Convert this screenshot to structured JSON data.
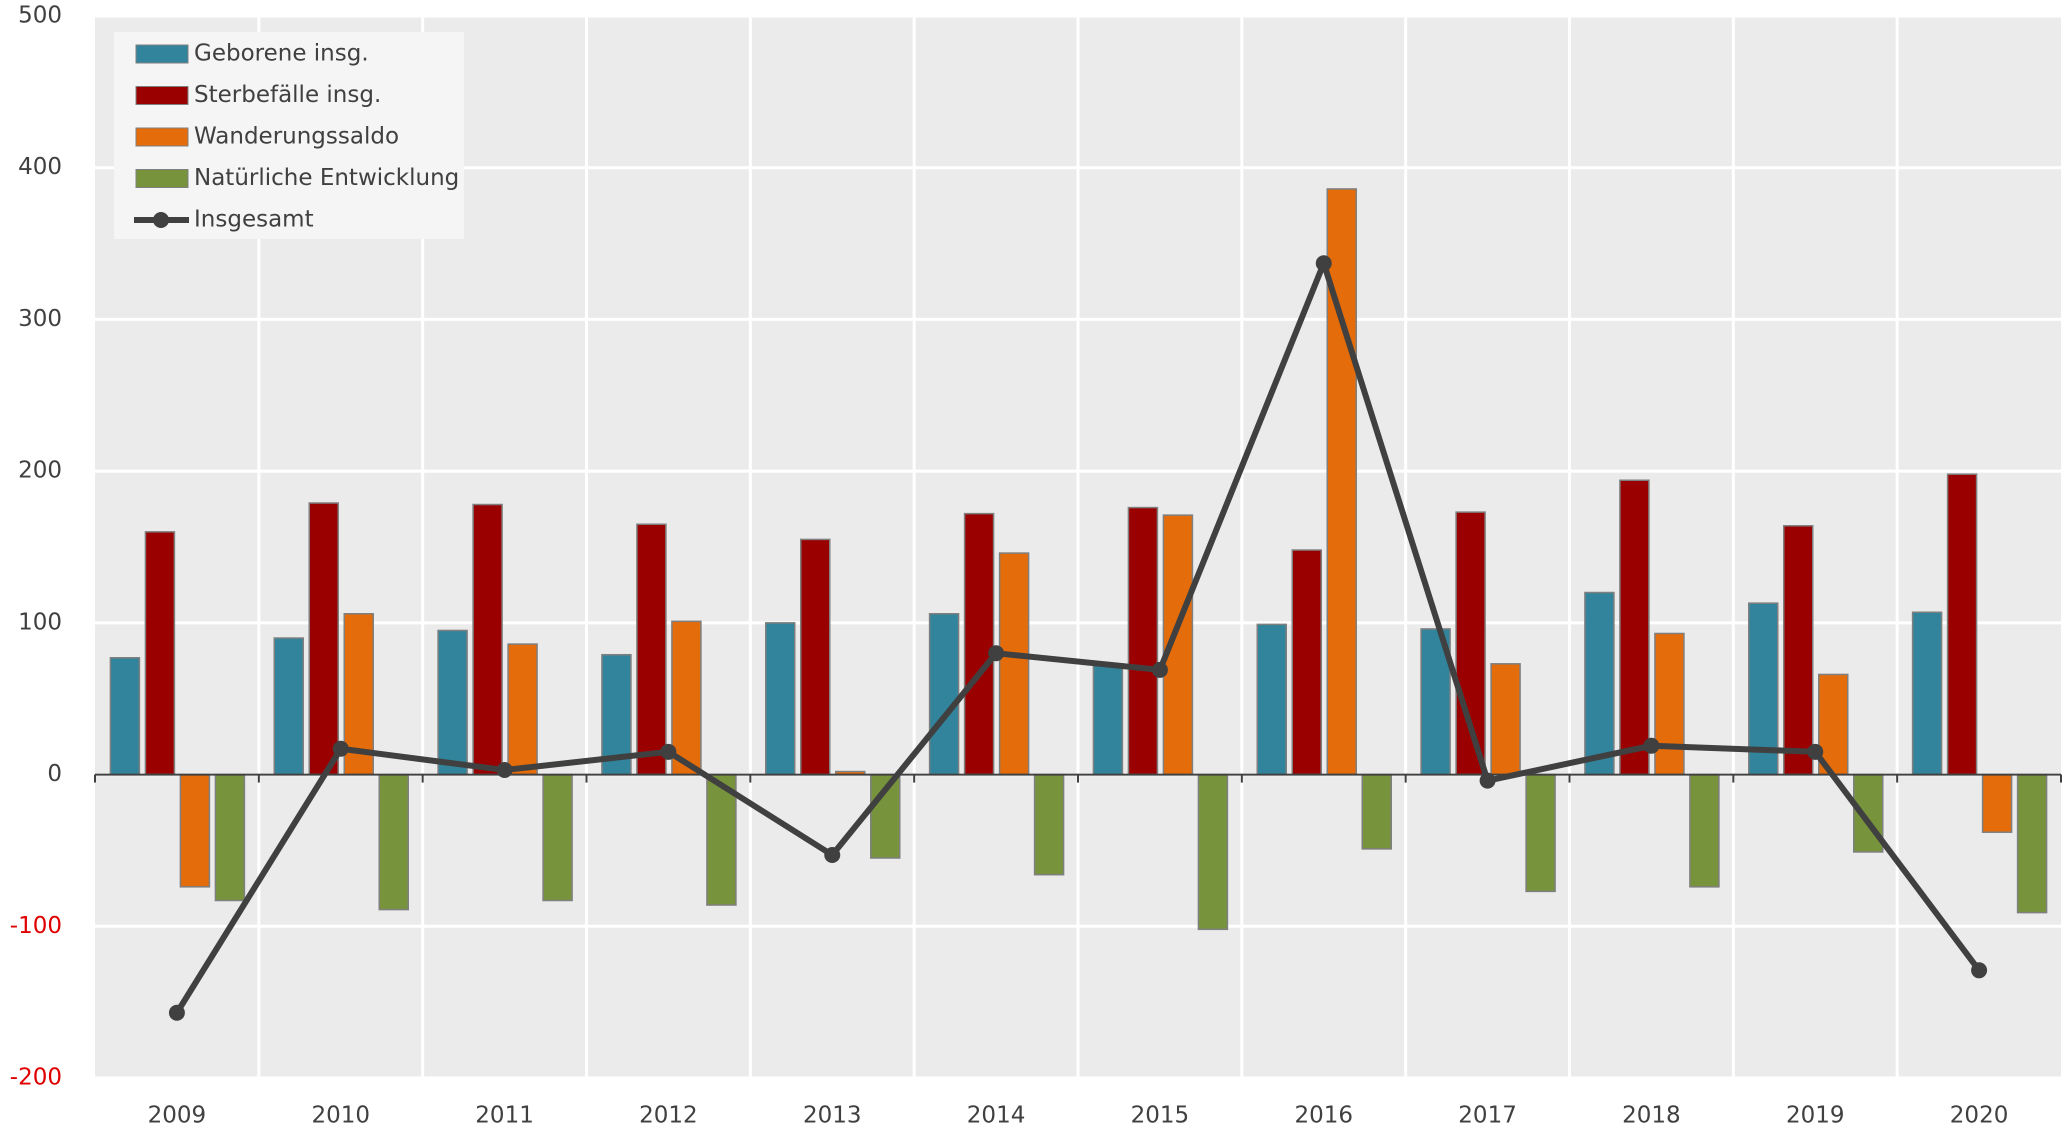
{
  "chart_data": {
    "type": "bar",
    "categories": [
      "2009",
      "2010",
      "2011",
      "2012",
      "2013",
      "2014",
      "2015",
      "2016",
      "2017",
      "2018",
      "2019",
      "2020"
    ],
    "series": [
      {
        "name": "Geborene insg.",
        "color": "#31849b",
        "values": [
          77,
          90,
          95,
          79,
          100,
          106,
          73,
          99,
          96,
          120,
          113,
          107
        ]
      },
      {
        "name": "Sterbefälle insg.",
        "color": "#9b0000",
        "values": [
          160,
          179,
          178,
          165,
          155,
          172,
          176,
          148,
          173,
          194,
          164,
          198
        ]
      },
      {
        "name": "Wanderungssaldo",
        "color": "#e46c0a",
        "values": [
          -74,
          106,
          86,
          101,
          2,
          146,
          171,
          386,
          73,
          93,
          66,
          -38
        ]
      },
      {
        "name": "Natürliche Entwicklung",
        "color": "#77933c",
        "values": [
          -83,
          -89,
          -83,
          -86,
          -55,
          -66,
          -102,
          -49,
          -77,
          -74,
          -51,
          -91
        ]
      },
      {
        "name": "Insgesamt",
        "color": "#404040",
        "type": "line",
        "values": [
          -157,
          17,
          3,
          15,
          -53,
          80,
          69,
          337,
          -4,
          19,
          15,
          -129
        ]
      }
    ],
    "ylim": [
      -200,
      500
    ],
    "yticks": [
      -200,
      -100,
      0,
      100,
      200,
      300,
      400,
      500
    ],
    "grid": true,
    "legend": "top-left",
    "negative_label_color": "#e00000"
  }
}
